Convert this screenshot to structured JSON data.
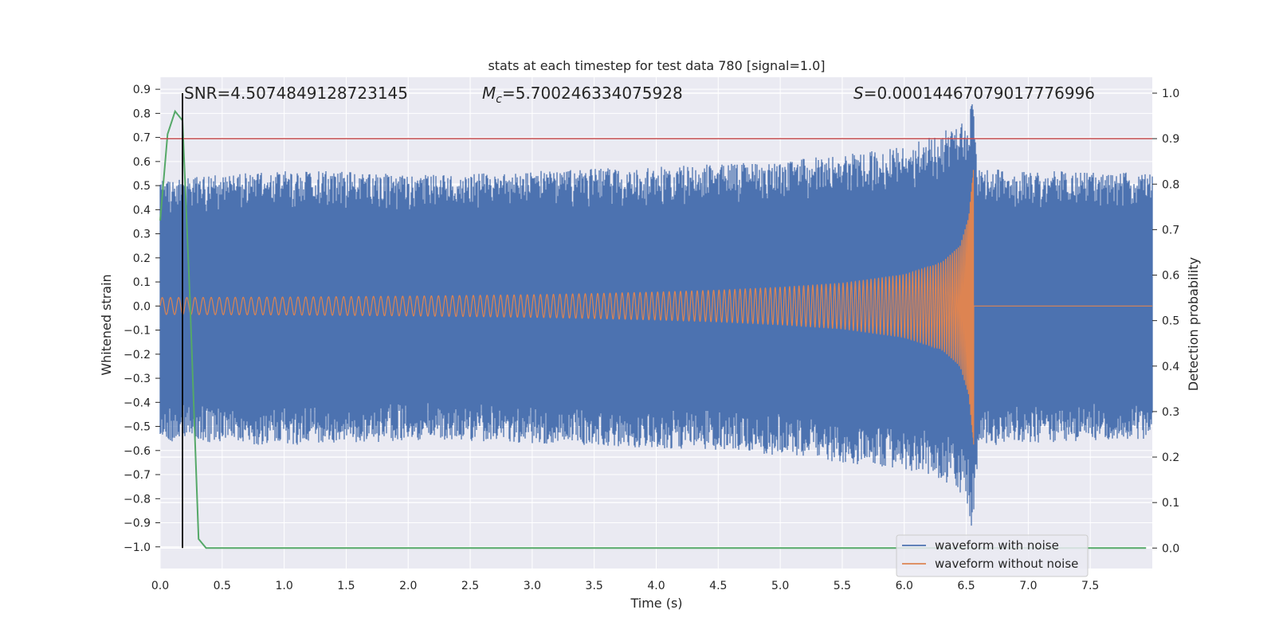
{
  "chart_data": {
    "type": "line",
    "title": "stats at each timestep for test data 780 [signal=1.0]",
    "xlabel": "Time (s)",
    "ylabel_left": "Whitened strain",
    "ylabel_right": "Detection probability",
    "xlim": [
      0.0,
      8.0
    ],
    "ylim_left": [
      -1.09,
      0.95
    ],
    "ylim_right": [
      -0.045,
      1.035
    ],
    "x_ticks": [
      "0.0",
      "0.5",
      "1.0",
      "1.5",
      "2.0",
      "2.5",
      "3.0",
      "3.5",
      "4.0",
      "4.5",
      "5.0",
      "5.5",
      "6.0",
      "6.5",
      "7.0",
      "7.5"
    ],
    "y_left_ticks": [
      "0.9",
      "0.8",
      "0.7",
      "0.6",
      "0.5",
      "0.4",
      "0.3",
      "0.2",
      "0.1",
      "0.0",
      "-0.1",
      "-0.2",
      "-0.3",
      "-0.4",
      "-0.5",
      "-0.6",
      "-0.7",
      "-0.8",
      "-0.9",
      "-1.0"
    ],
    "y_right_ticks": [
      "0.0",
      "0.1",
      "0.2",
      "0.3",
      "0.4",
      "0.5",
      "0.6",
      "0.7",
      "0.8",
      "0.9",
      "1.0"
    ],
    "grid": true,
    "legend_position": "lower-right",
    "annotations": {
      "snr_label": "SNR=4.5074849128723145",
      "mc_symbol": "M",
      "mc_sub": "c",
      "mc_value": "=5.700246334075928",
      "s_symbol": "S",
      "s_value": "=0.00014467079017776996"
    },
    "series": [
      {
        "name": "waveform with noise",
        "color": "#4c72b0",
        "axis": "left",
        "envelope": {
          "x": [
            0.0,
            0.5,
            1.0,
            1.5,
            2.0,
            2.5,
            3.0,
            3.5,
            4.0,
            4.5,
            5.0,
            5.5,
            6.0,
            6.3,
            6.5,
            6.55,
            6.6,
            7.0,
            7.5,
            8.0
          ],
          "upper": [
            0.52,
            0.55,
            0.56,
            0.56,
            0.55,
            0.55,
            0.56,
            0.57,
            0.58,
            0.59,
            0.6,
            0.63,
            0.66,
            0.72,
            0.78,
            0.85,
            0.57,
            0.56,
            0.56,
            0.55
          ],
          "lower": [
            -0.56,
            -0.57,
            -0.58,
            -0.57,
            -0.56,
            -0.56,
            -0.57,
            -0.58,
            -0.59,
            -0.6,
            -0.62,
            -0.65,
            -0.68,
            -0.72,
            -0.8,
            -0.95,
            -0.58,
            -0.57,
            -0.56,
            -0.55
          ]
        }
      },
      {
        "name": "waveform without noise",
        "color": "#dd8452",
        "axis": "left",
        "envelope": {
          "x": [
            0.0,
            0.5,
            1.0,
            1.5,
            2.0,
            2.5,
            3.0,
            3.5,
            4.0,
            4.5,
            5.0,
            5.5,
            6.0,
            6.3,
            6.45,
            6.52,
            6.56,
            6.57,
            8.0
          ],
          "amplitude": [
            0.035,
            0.036,
            0.037,
            0.039,
            0.041,
            0.044,
            0.047,
            0.052,
            0.058,
            0.066,
            0.078,
            0.095,
            0.13,
            0.18,
            0.25,
            0.37,
            0.58,
            0.0,
            0.0
          ]
        },
        "chirp_frequency_hz_start": 15,
        "merger_time": 6.56
      },
      {
        "name": "detection probability",
        "color": "#55a868",
        "axis": "right",
        "x": [
          0.0,
          0.06,
          0.12,
          0.18,
          0.24,
          0.31,
          0.37,
          0.5,
          1.0,
          2.0,
          3.0,
          4.0,
          5.0,
          6.0,
          7.0,
          7.95
        ],
        "y": [
          0.72,
          0.91,
          0.96,
          0.94,
          0.55,
          0.02,
          0.0,
          0.0,
          0.0,
          0.0,
          0.0,
          0.0,
          0.0,
          0.0,
          0.0,
          0.0
        ]
      }
    ],
    "threshold_line": {
      "axis": "right",
      "y": 0.9,
      "color": "#c44e52"
    },
    "vertical_marker": {
      "x": 0.18,
      "y_right_range": [
        0.0,
        1.0
      ],
      "color": "#000000"
    }
  }
}
